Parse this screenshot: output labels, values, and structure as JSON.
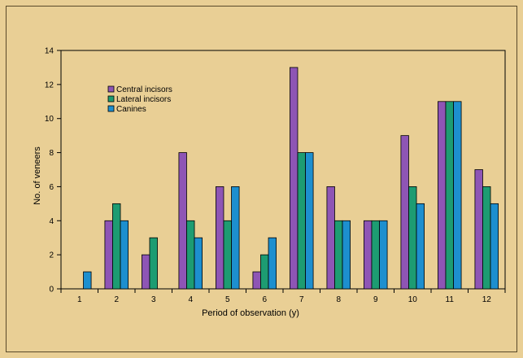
{
  "chart_data": {
    "type": "bar",
    "title": "",
    "xlabel": "Period of observation (y)",
    "ylabel": "No. of veneers",
    "ylim": [
      0,
      14
    ],
    "yticks": [
      0,
      2,
      4,
      6,
      8,
      10,
      12,
      14
    ],
    "grid": false,
    "legend_position": "top-left",
    "categories": [
      "1",
      "2",
      "3",
      "4",
      "5",
      "6",
      "7",
      "8",
      "9",
      "10",
      "11",
      "12"
    ],
    "series": [
      {
        "name": "Central incisors",
        "color": "#8e55b5",
        "values": [
          0,
          4,
          2,
          8,
          6,
          1,
          13,
          6,
          4,
          9,
          11,
          7
        ]
      },
      {
        "name": "Lateral incisors",
        "color": "#1d9c72",
        "values": [
          0,
          5,
          3,
          4,
          4,
          2,
          8,
          4,
          4,
          6,
          11,
          6
        ]
      },
      {
        "name": "Canines",
        "color": "#1d8fcf",
        "values": [
          1,
          4,
          0,
          3,
          6,
          3,
          8,
          4,
          4,
          5,
          11,
          5
        ]
      }
    ]
  },
  "colors": {
    "background": "#e9cf95",
    "axis": "#000000"
  }
}
